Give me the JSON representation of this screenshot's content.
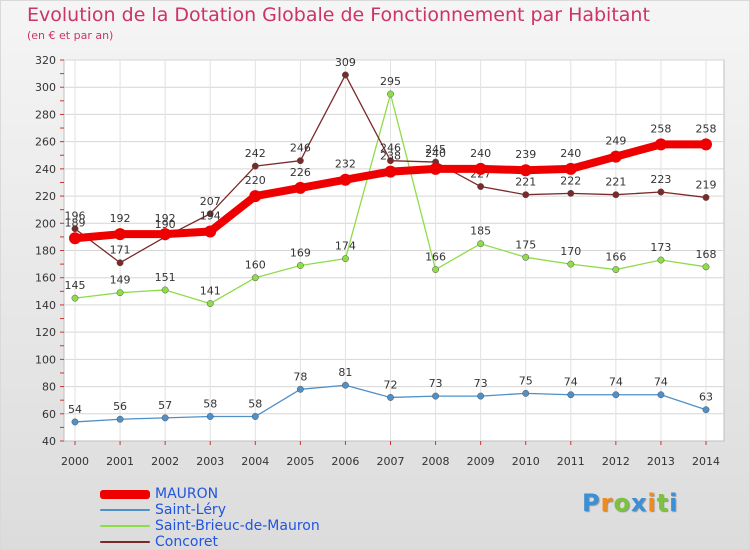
{
  "title": "Evolution de la Dotation Globale de Fonctionnement par Habitant",
  "subtitle": "(en € et par an)",
  "logo": {
    "text": "Proxiti",
    "letters": [
      "P",
      "r",
      "o",
      "x",
      "i",
      "t",
      "i"
    ],
    "colors": [
      "#3a8fd6",
      "#f08a1e",
      "#7cc242",
      "#3a8fd6",
      "#f08a1e",
      "#7cc242",
      "#3a8fd6"
    ]
  },
  "chart_data": {
    "type": "line",
    "categories": [
      "2000",
      "2001",
      "2002",
      "2003",
      "2004",
      "2005",
      "2006",
      "2007",
      "2008",
      "2009",
      "2010",
      "2011",
      "2012",
      "2013",
      "2014"
    ],
    "ylim": [
      40,
      320
    ],
    "ytick_step": 20,
    "yticks": [
      "40",
      "60",
      "80",
      "100",
      "120",
      "140",
      "160",
      "180",
      "200",
      "220",
      "240",
      "260",
      "280",
      "300",
      "320"
    ],
    "grid": true,
    "legend_position": "bottom-left",
    "series": [
      {
        "name": "MAURON",
        "color": "#ee0000",
        "emphasis": true,
        "values": [
          189,
          192,
          192,
          194,
          220,
          226,
          232,
          238,
          240,
          240,
          239,
          240,
          249,
          258,
          258
        ],
        "labels": [
          "189",
          "192",
          "192",
          "194",
          "220",
          "226",
          "232",
          "238",
          "240",
          "240",
          "239",
          "240",
          "249",
          "258",
          "258"
        ]
      },
      {
        "name": "Saint-Léry",
        "color": "#4f90c8",
        "emphasis": false,
        "values": [
          54,
          56,
          57,
          58,
          58,
          78,
          81,
          72,
          73,
          73,
          75,
          74,
          74,
          74,
          63
        ],
        "labels": [
          "54",
          "56",
          "57",
          "58",
          "58",
          "78",
          "81",
          "72",
          "73",
          "73",
          "75",
          "74",
          "74",
          "74",
          "63"
        ]
      },
      {
        "name": "Saint-Brieuc-de-Mauron",
        "color": "#8fdc4a",
        "emphasis": false,
        "values": [
          145,
          149,
          151,
          141,
          160,
          169,
          174,
          295,
          166,
          185,
          175,
          170,
          166,
          173,
          168
        ],
        "labels": [
          "145",
          "149",
          "151",
          "141",
          "160",
          "169",
          "174",
          "295",
          "166",
          "185",
          "175",
          "170",
          "166",
          "173",
          "168"
        ]
      },
      {
        "name": "Concoret",
        "color": "#7a2a2a",
        "emphasis": false,
        "values": [
          196,
          171,
          190,
          207,
          242,
          246,
          309,
          246,
          245,
          227,
          221,
          222,
          221,
          223,
          219
        ],
        "labels": [
          "196",
          "171",
          "190",
          "207",
          "242",
          "246",
          "309",
          "246",
          "245",
          "227",
          "221",
          "222",
          "221",
          "223",
          "219"
        ]
      }
    ]
  }
}
